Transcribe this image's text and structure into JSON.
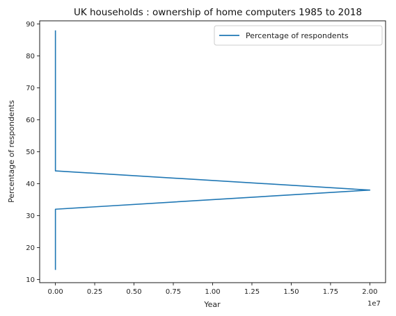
{
  "chart_data": {
    "type": "line",
    "title": "UK households : ownership of home computers 1985 to 2018",
    "xlabel": "Year",
    "ylabel": "Percentage of respondents",
    "x_offset_label": "1e7",
    "xlim": [
      -1000000,
      21000000
    ],
    "ylim": [
      9,
      91
    ],
    "x_ticks": [
      0,
      2500000,
      5000000,
      7500000,
      10000000,
      12500000,
      15000000,
      17500000,
      20000000
    ],
    "x_tick_labels": [
      "0.00",
      "0.25",
      "0.50",
      "0.75",
      "1.00",
      "1.25",
      "1.50",
      "1.75",
      "2.00"
    ],
    "y_ticks": [
      10,
      20,
      30,
      40,
      50,
      60,
      70,
      80,
      90
    ],
    "y_tick_labels": [
      "10",
      "20",
      "30",
      "40",
      "50",
      "60",
      "70",
      "80",
      "90"
    ],
    "legend_position": "top-right",
    "grid": false,
    "series": [
      {
        "name": "Percentage of respondents",
        "color": "#1f77b4",
        "x": [
          1985,
          1986,
          1987,
          1988,
          1989,
          1990,
          1991,
          1992,
          1993,
          1994,
          1995,
          1996,
          1997,
          1998,
          1999,
          20000000,
          2001,
          2002,
          2003,
          2004,
          2005,
          2006,
          2007,
          2008,
          2009,
          2010,
          2011,
          2012,
          2013,
          2014,
          2015,
          2016,
          2017,
          2018
        ],
        "y": [
          13,
          15,
          17,
          18,
          19,
          19,
          21,
          21,
          22,
          24,
          25,
          26,
          27,
          30,
          32,
          38,
          44,
          53,
          54,
          58,
          63,
          65,
          67,
          70,
          75,
          77,
          80,
          81,
          83,
          84,
          85,
          85,
          87,
          88
        ]
      }
    ]
  }
}
